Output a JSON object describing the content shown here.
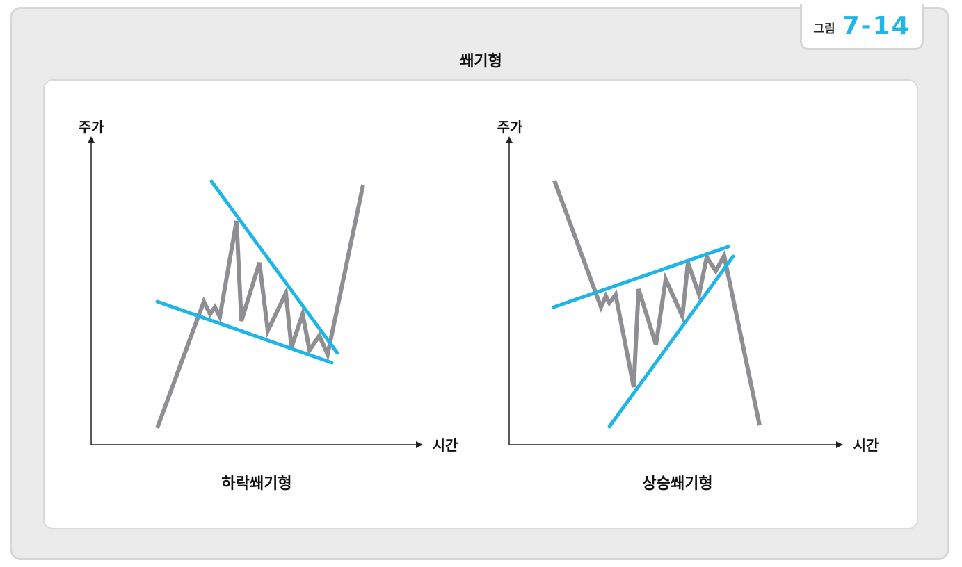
{
  "figure": {
    "label": "그림",
    "number": "7-14",
    "title": "쐐기형",
    "accent_color": "#1fb5e6",
    "price_line_color": "#8e8e93"
  },
  "charts": [
    {
      "id": "falling-wedge",
      "caption": "하락쐐기형",
      "y_axis_label": "주가",
      "x_axis_label": "시간"
    },
    {
      "id": "rising-wedge",
      "caption": "상승쐐기형",
      "y_axis_label": "주가",
      "x_axis_label": "시간"
    }
  ]
}
